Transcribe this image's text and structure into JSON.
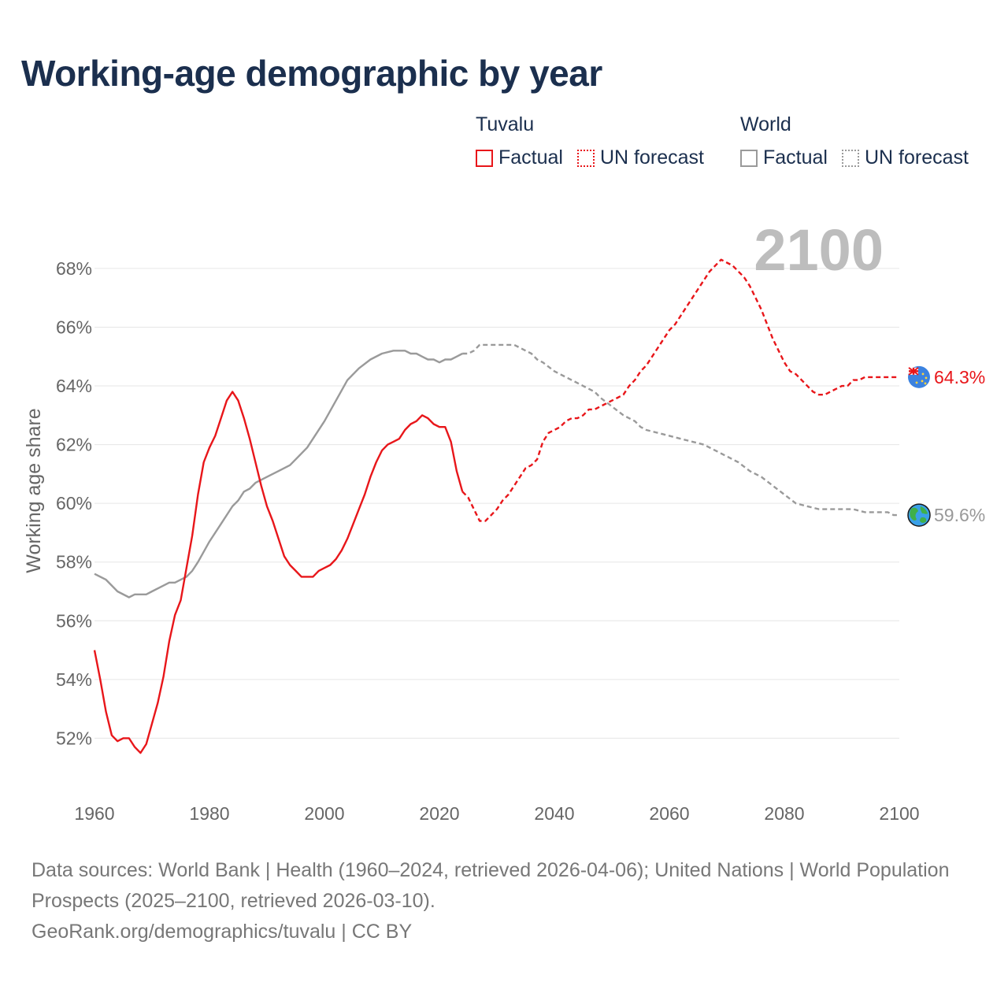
{
  "title": "Working-age demographic by year",
  "legend": {
    "tuvalu": {
      "title": "Tuvalu",
      "factual": "Factual",
      "forecast": "UN forecast"
    },
    "world": {
      "title": "World",
      "factual": "Factual",
      "forecast": "UN forecast"
    }
  },
  "footer": {
    "sources": "Data sources: World Bank | Health (1960–2024, retrieved 2026-04-06); United Nations | World Population Prospects (2025–2100, retrieved 2026-03-10).",
    "credit": "GeoRank.org/demographics/tuvalu | CC BY"
  },
  "colors": {
    "tuvalu": "#e8161a",
    "world": "#9a9a9a",
    "grid": "#e6e6e6",
    "title": "#1b2f4e"
  },
  "chart_data": {
    "type": "line",
    "ylabel": "Working age share",
    "current_year_label": "2100",
    "xlim": [
      1960,
      2100
    ],
    "ylim": [
      50,
      69.5
    ],
    "xticks": [
      1960,
      1980,
      2000,
      2020,
      2040,
      2060,
      2080,
      2100
    ],
    "xtick_labels": [
      "1960",
      "1980",
      "2000",
      "2020",
      "2040",
      "2060",
      "2080",
      "2100"
    ],
    "yticks": [
      52,
      54,
      56,
      58,
      60,
      62,
      64,
      66,
      68
    ],
    "ytick_labels": [
      "52%",
      "54%",
      "56%",
      "58%",
      "60%",
      "62%",
      "64%",
      "66%",
      "68%"
    ],
    "series": [
      {
        "name": "Tuvalu",
        "color": "#e8161a",
        "end_label": "64.3%",
        "end_icon": "tuvalu-flag-icon",
        "factual": {
          "x": [
            1960,
            1961,
            1962,
            1963,
            1964,
            1965,
            1966,
            1967,
            1968,
            1969,
            1970,
            1971,
            1972,
            1973,
            1974,
            1975,
            1976,
            1977,
            1978,
            1979,
            1980,
            1981,
            1982,
            1983,
            1984,
            1985,
            1986,
            1987,
            1988,
            1989,
            1990,
            1991,
            1992,
            1993,
            1994,
            1995,
            1996,
            1997,
            1998,
            1999,
            2000,
            2001,
            2002,
            2003,
            2004,
            2005,
            2006,
            2007,
            2008,
            2009,
            2010,
            2011,
            2012,
            2013,
            2014,
            2015,
            2016,
            2017,
            2018,
            2019,
            2020,
            2021,
            2022,
            2023,
            2024
          ],
          "y": [
            55.0,
            54.0,
            52.9,
            52.1,
            51.9,
            52.0,
            52.0,
            51.7,
            51.5,
            51.8,
            52.5,
            53.2,
            54.1,
            55.3,
            56.2,
            56.7,
            57.8,
            58.9,
            60.3,
            61.4,
            61.9,
            62.3,
            62.9,
            63.5,
            63.8,
            63.5,
            62.9,
            62.2,
            61.4,
            60.6,
            59.9,
            59.4,
            58.8,
            58.2,
            57.9,
            57.7,
            57.5,
            57.5,
            57.5,
            57.7,
            57.8,
            57.9,
            58.1,
            58.4,
            58.8,
            59.3,
            59.8,
            60.3,
            60.9,
            61.4,
            61.8,
            62.0,
            62.1,
            62.2,
            62.5,
            62.7,
            62.8,
            63.0,
            62.9,
            62.7,
            62.6,
            62.6,
            62.1,
            61.1,
            60.4
          ]
        },
        "forecast": {
          "x": [
            2024,
            2025,
            2026,
            2027,
            2028,
            2029,
            2030,
            2031,
            2032,
            2033,
            2034,
            2035,
            2036,
            2037,
            2038,
            2039,
            2040,
            2041,
            2042,
            2043,
            2044,
            2045,
            2046,
            2047,
            2048,
            2049,
            2050,
            2051,
            2052,
            2053,
            2054,
            2055,
            2056,
            2057,
            2058,
            2059,
            2060,
            2061,
            2062,
            2063,
            2064,
            2065,
            2066,
            2067,
            2068,
            2069,
            2070,
            2071,
            2072,
            2073,
            2074,
            2075,
            2076,
            2077,
            2078,
            2079,
            2080,
            2081,
            2082,
            2083,
            2084,
            2085,
            2086,
            2087,
            2088,
            2089,
            2090,
            2091,
            2092,
            2093,
            2094,
            2095,
            2096,
            2097,
            2098,
            2099,
            2100
          ],
          "y": [
            60.4,
            60.2,
            59.8,
            59.4,
            59.4,
            59.6,
            59.8,
            60.1,
            60.3,
            60.6,
            60.9,
            61.2,
            61.3,
            61.5,
            62.1,
            62.4,
            62.5,
            62.6,
            62.8,
            62.9,
            62.9,
            63.0,
            63.2,
            63.2,
            63.3,
            63.4,
            63.5,
            63.6,
            63.7,
            64.0,
            64.2,
            64.5,
            64.7,
            65.0,
            65.3,
            65.6,
            65.9,
            66.1,
            66.4,
            66.7,
            67.0,
            67.3,
            67.6,
            67.9,
            68.1,
            68.3,
            68.2,
            68.1,
            67.9,
            67.7,
            67.4,
            67.0,
            66.6,
            66.1,
            65.6,
            65.2,
            64.8,
            64.5,
            64.4,
            64.2,
            64.0,
            63.8,
            63.7,
            63.7,
            63.8,
            63.9,
            64.0,
            64.0,
            64.2,
            64.2,
            64.3,
            64.3,
            64.3,
            64.3,
            64.3,
            64.3,
            64.3
          ]
        }
      },
      {
        "name": "World",
        "color": "#9a9a9a",
        "end_label": "59.6%",
        "end_icon": "globe-icon",
        "factual": {
          "x": [
            1960,
            1962,
            1964,
            1966,
            1967,
            1968,
            1969,
            1970,
            1972,
            1973,
            1974,
            1975,
            1976,
            1977,
            1978,
            1980,
            1982,
            1984,
            1985,
            1986,
            1987,
            1988,
            1990,
            1992,
            1994,
            1996,
            1997,
            1998,
            2000,
            2002,
            2004,
            2006,
            2008,
            2010,
            2012,
            2014,
            2015,
            2016,
            2017,
            2018,
            2019,
            2020,
            2021,
            2022,
            2023,
            2024
          ],
          "y": [
            57.6,
            57.4,
            57.0,
            56.8,
            56.9,
            56.9,
            56.9,
            57.0,
            57.2,
            57.3,
            57.3,
            57.4,
            57.5,
            57.7,
            58.0,
            58.7,
            59.3,
            59.9,
            60.1,
            60.4,
            60.5,
            60.7,
            60.9,
            61.1,
            61.3,
            61.7,
            61.9,
            62.2,
            62.8,
            63.5,
            64.2,
            64.6,
            64.9,
            65.1,
            65.2,
            65.2,
            65.1,
            65.1,
            65.0,
            64.9,
            64.9,
            64.8,
            64.9,
            64.9,
            65.0,
            65.1
          ]
        },
        "forecast": {
          "x": [
            2024,
            2025,
            2026,
            2027,
            2028,
            2030,
            2032,
            2033,
            2034,
            2035,
            2036,
            2037,
            2038,
            2040,
            2042,
            2044,
            2046,
            2047,
            2048,
            2050,
            2052,
            2054,
            2055,
            2056,
            2058,
            2060,
            2062,
            2064,
            2066,
            2068,
            2070,
            2072,
            2074,
            2075,
            2076,
            2078,
            2080,
            2082,
            2084,
            2086,
            2088,
            2090,
            2092,
            2094,
            2096,
            2098,
            2099,
            2100
          ],
          "y": [
            65.1,
            65.1,
            65.2,
            65.4,
            65.4,
            65.4,
            65.4,
            65.4,
            65.3,
            65.2,
            65.1,
            64.9,
            64.8,
            64.5,
            64.3,
            64.1,
            63.9,
            63.8,
            63.6,
            63.3,
            63.0,
            62.8,
            62.6,
            62.5,
            62.4,
            62.3,
            62.2,
            62.1,
            62.0,
            61.8,
            61.6,
            61.4,
            61.1,
            61.0,
            60.9,
            60.6,
            60.3,
            60.0,
            59.9,
            59.8,
            59.8,
            59.8,
            59.8,
            59.7,
            59.7,
            59.7,
            59.6,
            59.6
          ]
        }
      }
    ]
  }
}
